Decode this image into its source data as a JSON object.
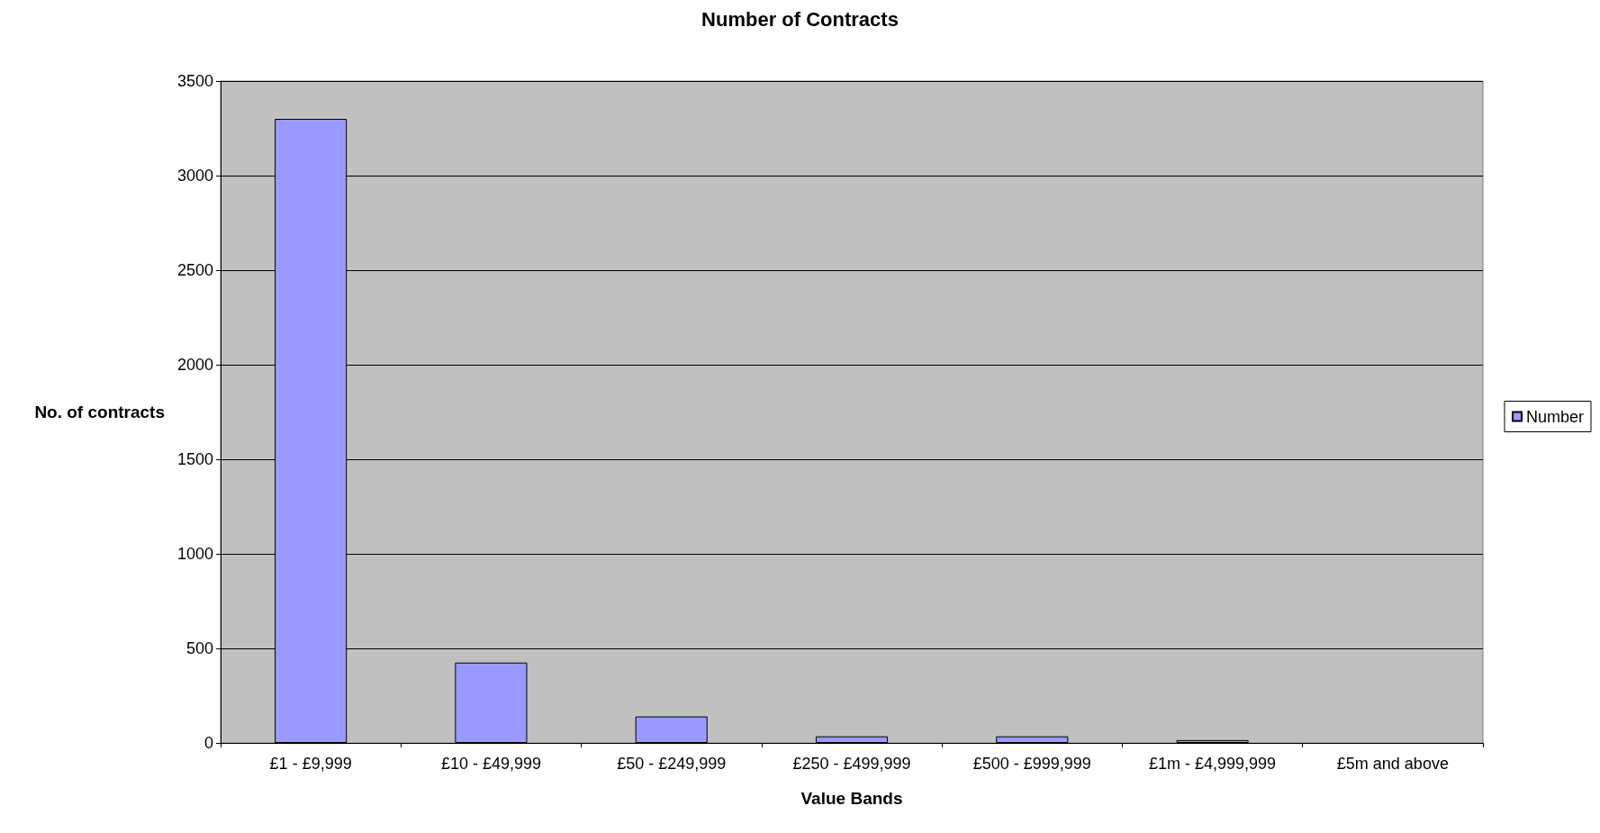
{
  "chart_data": {
    "type": "bar",
    "title": "Number of Contracts",
    "xlabel": "Value Bands",
    "ylabel": "No. of contracts",
    "categories": [
      "£1 - £9,999",
      "£10 - £49,999",
      "£50 - £249,999",
      "£250 - £499,999",
      "£500 - £999,999",
      "£1m - £4,999,999",
      "£5m and above"
    ],
    "series": [
      {
        "name": "Number",
        "color": "#9999ff",
        "values": [
          3300,
          425,
          140,
          35,
          35,
          15,
          null
        ]
      }
    ],
    "ylim": [
      0,
      3500
    ],
    "yticks": [
      0,
      500,
      1000,
      1500,
      2000,
      2500,
      3000,
      3500
    ],
    "grid": "y",
    "legend": "right"
  }
}
